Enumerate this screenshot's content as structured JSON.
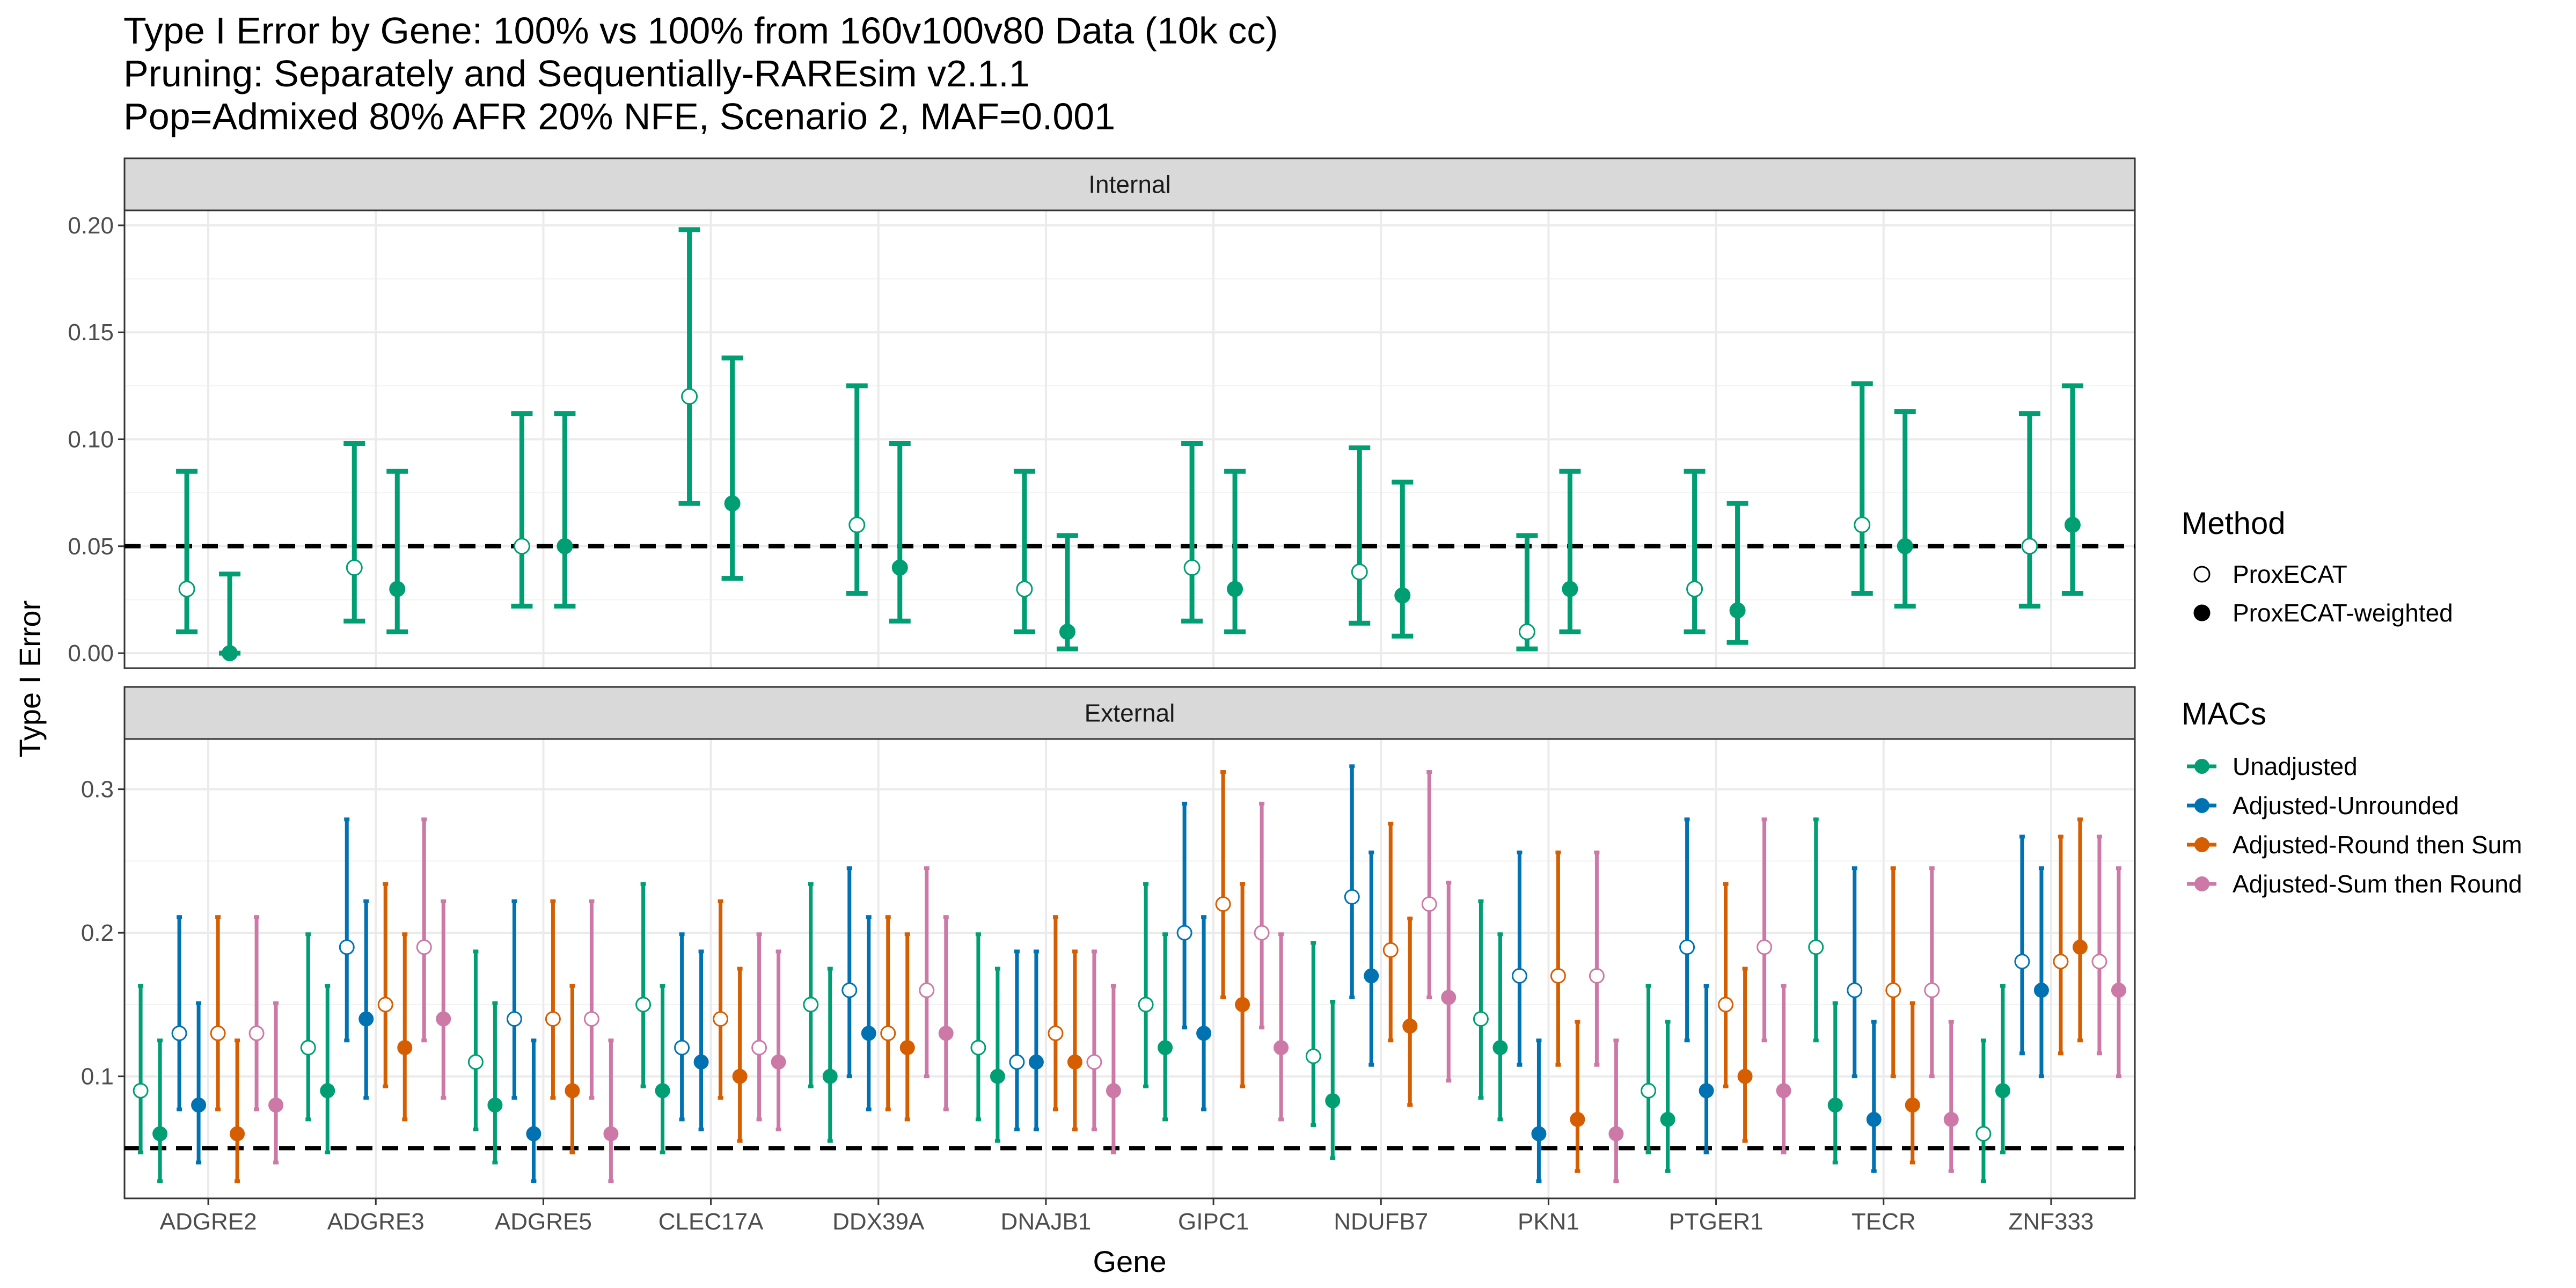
{
  "title_lines": [
    "Type I Error by Gene: 100% vs 100% from 160v100v80 Data (10k cc)",
    "Pruning: Separately and Sequentially-RAREsim v2.1.1",
    "Pop=Admixed 80% AFR 20% NFE, Scenario 2, MAF=0.001"
  ],
  "chart_data": [
    {
      "type": "scatter",
      "panel": "Internal",
      "xlabel": "Gene",
      "ylabel": "Type I Error",
      "categories": [
        "ADGRE2",
        "ADGRE3",
        "ADGRE5",
        "CLEC17A",
        "DDX39A",
        "DNAJB1",
        "GIPC1",
        "NDUFB7",
        "PKN1",
        "PTGER1",
        "TECR",
        "ZNF333"
      ],
      "ylim": [
        -0.007,
        0.207
      ],
      "yticks": [
        0.0,
        0.05,
        0.1,
        0.15,
        0.2
      ],
      "ytick_labels": [
        "0.00",
        "0.05",
        "0.10",
        "0.15",
        "0.20"
      ],
      "reference_line": 0.05,
      "grid": true,
      "series": [
        {
          "method": "ProxECAT",
          "mac": "Unadjusted",
          "values": [
            0.03,
            0.04,
            0.05,
            0.12,
            0.06,
            0.03,
            0.04,
            0.038,
            0.01,
            0.03,
            0.06,
            0.05
          ],
          "lower": [
            0.01,
            0.015,
            0.022,
            0.07,
            0.028,
            0.01,
            0.015,
            0.014,
            0.002,
            0.01,
            0.028,
            0.022
          ],
          "upper": [
            0.085,
            0.098,
            0.112,
            0.198,
            0.125,
            0.085,
            0.098,
            0.096,
            0.055,
            0.085,
            0.126,
            0.112
          ]
        },
        {
          "method": "ProxECAT-weighted",
          "mac": "Unadjusted",
          "values": [
            0.0,
            0.03,
            0.05,
            0.07,
            0.04,
            0.01,
            0.03,
            0.027,
            0.03,
            0.02,
            0.05,
            0.06
          ],
          "lower": [
            0.0,
            0.01,
            0.022,
            0.035,
            0.015,
            0.002,
            0.01,
            0.008,
            0.01,
            0.005,
            0.022,
            0.028
          ],
          "upper": [
            0.037,
            0.085,
            0.112,
            0.138,
            0.098,
            0.055,
            0.085,
            0.08,
            0.085,
            0.07,
            0.113,
            0.125
          ]
        }
      ]
    },
    {
      "type": "scatter",
      "panel": "External",
      "xlabel": "Gene",
      "ylabel": "Type I Error",
      "categories": [
        "ADGRE2",
        "ADGRE3",
        "ADGRE5",
        "CLEC17A",
        "DDX39A",
        "DNAJB1",
        "GIPC1",
        "NDUFB7",
        "PKN1",
        "PTGER1",
        "TECR",
        "ZNF333"
      ],
      "ylim": [
        0.015,
        0.335
      ],
      "yticks": [
        0.1,
        0.2,
        0.3
      ],
      "ytick_labels": [
        "0.1",
        "0.2",
        "0.3"
      ],
      "reference_line": 0.05,
      "grid": true,
      "series": [
        {
          "method": "ProxECAT",
          "mac": "Unadjusted",
          "values": [
            0.09,
            0.12,
            0.11,
            0.15,
            0.15,
            0.12,
            0.15,
            0.114,
            0.14,
            0.09,
            0.19,
            0.06
          ],
          "lower": [
            0.047,
            0.07,
            0.063,
            0.093,
            0.093,
            0.07,
            0.093,
            0.066,
            0.085,
            0.047,
            0.125,
            0.027
          ],
          "upper": [
            0.163,
            0.199,
            0.187,
            0.234,
            0.234,
            0.199,
            0.234,
            0.193,
            0.222,
            0.163,
            0.279,
            0.125
          ]
        },
        {
          "method": "ProxECAT-weighted",
          "mac": "Unadjusted",
          "values": [
            0.06,
            0.09,
            0.08,
            0.09,
            0.1,
            0.1,
            0.12,
            0.083,
            0.12,
            0.07,
            0.08,
            0.09
          ],
          "lower": [
            0.027,
            0.047,
            0.04,
            0.047,
            0.055,
            0.055,
            0.07,
            0.043,
            0.07,
            0.034,
            0.04,
            0.047
          ],
          "upper": [
            0.125,
            0.163,
            0.151,
            0.163,
            0.175,
            0.175,
            0.199,
            0.152,
            0.199,
            0.138,
            0.151,
            0.163
          ]
        },
        {
          "method": "ProxECAT",
          "mac": "Adjusted-Unrounded",
          "values": [
            0.13,
            0.19,
            0.14,
            0.12,
            0.16,
            0.11,
            0.2,
            0.225,
            0.17,
            0.19,
            0.16,
            0.18
          ],
          "lower": [
            0.077,
            0.125,
            0.085,
            0.07,
            0.1,
            0.063,
            0.134,
            0.155,
            0.108,
            0.125,
            0.1,
            0.116
          ],
          "upper": [
            0.211,
            0.279,
            0.222,
            0.199,
            0.245,
            0.187,
            0.29,
            0.316,
            0.256,
            0.279,
            0.245,
            0.267
          ]
        },
        {
          "method": "ProxECAT-weighted",
          "mac": "Adjusted-Unrounded",
          "values": [
            0.08,
            0.14,
            0.06,
            0.11,
            0.13,
            0.11,
            0.13,
            0.17,
            0.06,
            0.09,
            0.07,
            0.16
          ],
          "lower": [
            0.04,
            0.085,
            0.027,
            0.063,
            0.077,
            0.063,
            0.077,
            0.108,
            0.027,
            0.047,
            0.034,
            0.1
          ],
          "upper": [
            0.151,
            0.222,
            0.125,
            0.187,
            0.211,
            0.187,
            0.211,
            0.256,
            0.125,
            0.163,
            0.138,
            0.245
          ]
        },
        {
          "method": "ProxECAT",
          "mac": "Adjusted-Round then Sum",
          "values": [
            0.13,
            0.15,
            0.14,
            0.14,
            0.13,
            0.13,
            0.22,
            0.188,
            0.17,
            0.15,
            0.16,
            0.18
          ],
          "lower": [
            0.077,
            0.093,
            0.085,
            0.085,
            0.077,
            0.077,
            0.155,
            0.125,
            0.108,
            0.093,
            0.1,
            0.116
          ],
          "upper": [
            0.211,
            0.234,
            0.222,
            0.222,
            0.211,
            0.211,
            0.312,
            0.276,
            0.256,
            0.234,
            0.245,
            0.267
          ]
        },
        {
          "method": "ProxECAT-weighted",
          "mac": "Adjusted-Round then Sum",
          "values": [
            0.06,
            0.12,
            0.09,
            0.1,
            0.12,
            0.11,
            0.15,
            0.135,
            0.07,
            0.1,
            0.08,
            0.19
          ],
          "lower": [
            0.027,
            0.07,
            0.047,
            0.055,
            0.07,
            0.063,
            0.093,
            0.08,
            0.034,
            0.055,
            0.04,
            0.125
          ],
          "upper": [
            0.125,
            0.199,
            0.163,
            0.175,
            0.199,
            0.187,
            0.234,
            0.21,
            0.138,
            0.175,
            0.151,
            0.279
          ]
        },
        {
          "method": "ProxECAT",
          "mac": "Adjusted-Sum then Round",
          "values": [
            0.13,
            0.19,
            0.14,
            0.12,
            0.16,
            0.11,
            0.2,
            0.22,
            0.17,
            0.19,
            0.16,
            0.18
          ],
          "lower": [
            0.077,
            0.125,
            0.085,
            0.07,
            0.1,
            0.063,
            0.134,
            0.155,
            0.108,
            0.125,
            0.1,
            0.116
          ],
          "upper": [
            0.211,
            0.279,
            0.222,
            0.199,
            0.245,
            0.187,
            0.29,
            0.312,
            0.256,
            0.279,
            0.245,
            0.267
          ]
        },
        {
          "method": "ProxECAT-weighted",
          "mac": "Adjusted-Sum then Round",
          "values": [
            0.08,
            0.14,
            0.06,
            0.11,
            0.13,
            0.09,
            0.12,
            0.155,
            0.06,
            0.09,
            0.07,
            0.16
          ],
          "lower": [
            0.04,
            0.085,
            0.027,
            0.063,
            0.077,
            0.047,
            0.07,
            0.097,
            0.027,
            0.047,
            0.034,
            0.1
          ],
          "upper": [
            0.151,
            0.222,
            0.125,
            0.187,
            0.211,
            0.163,
            0.199,
            0.235,
            0.125,
            0.163,
            0.138,
            0.245
          ]
        }
      ]
    }
  ],
  "legend": {
    "method_title": "Method",
    "methods": [
      "ProxECAT",
      "ProxECAT-weighted"
    ],
    "mac_title": "MACs",
    "macs": [
      {
        "label": "Unadjusted",
        "color": "#009E73"
      },
      {
        "label": "Adjusted-Unrounded",
        "color": "#0072B2"
      },
      {
        "label": "Adjusted-Round then Sum",
        "color": "#D55E00"
      },
      {
        "label": "Adjusted-Sum then Round",
        "color": "#CC79A7"
      }
    ]
  }
}
